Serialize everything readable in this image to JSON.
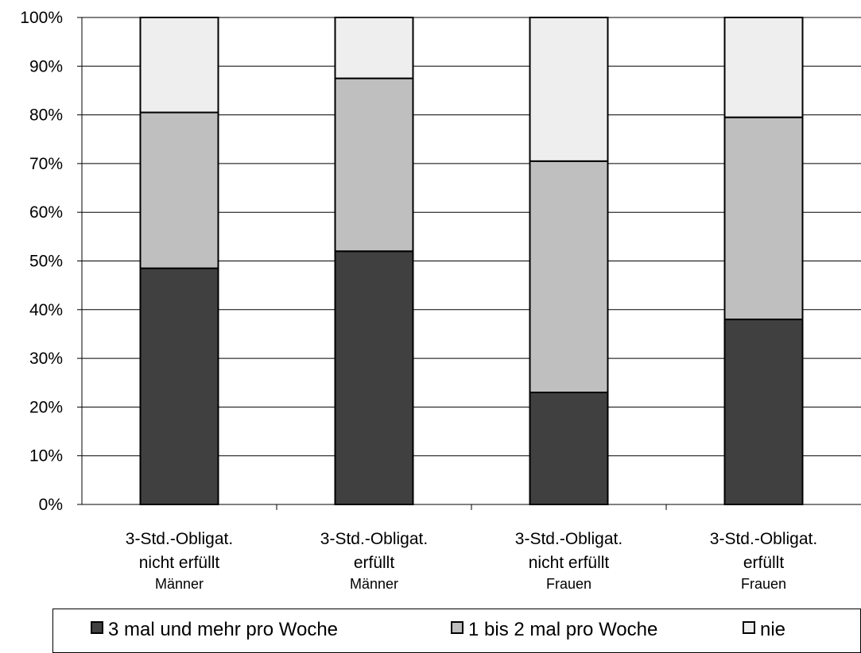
{
  "chart_data": {
    "type": "bar",
    "stacked": true,
    "percent": true,
    "categories": [
      [
        "3-Std.-Obligat.",
        "nicht erfüllt",
        "Männer"
      ],
      [
        "3-Std.-Obligat.",
        "erfüllt",
        "Männer"
      ],
      [
        "3-Std.-Obligat.",
        "nicht erfüllt",
        "Frauen"
      ],
      [
        "3-Std.-Obligat.",
        "erfüllt",
        "Frauen"
      ]
    ],
    "series": [
      {
        "name": "3 mal und mehr pro Woche",
        "color": "#404040",
        "values": [
          48.5,
          52,
          23,
          38
        ]
      },
      {
        "name": "1 bis 2 mal pro Woche",
        "color": "#bfbfbf",
        "values": [
          32,
          35.5,
          47.5,
          41.5
        ]
      },
      {
        "name": "nie",
        "color": "#eeeeee",
        "values": [
          19.5,
          12.5,
          29.5,
          20.5
        ]
      }
    ],
    "ylim": [
      0,
      100
    ],
    "yticks": [
      "0%",
      "10%",
      "20%",
      "30%",
      "40%",
      "50%",
      "60%",
      "70%",
      "80%",
      "90%",
      "100%"
    ],
    "grid": true,
    "legend": "bottom",
    "title": "",
    "xlabel": "",
    "ylabel": ""
  }
}
